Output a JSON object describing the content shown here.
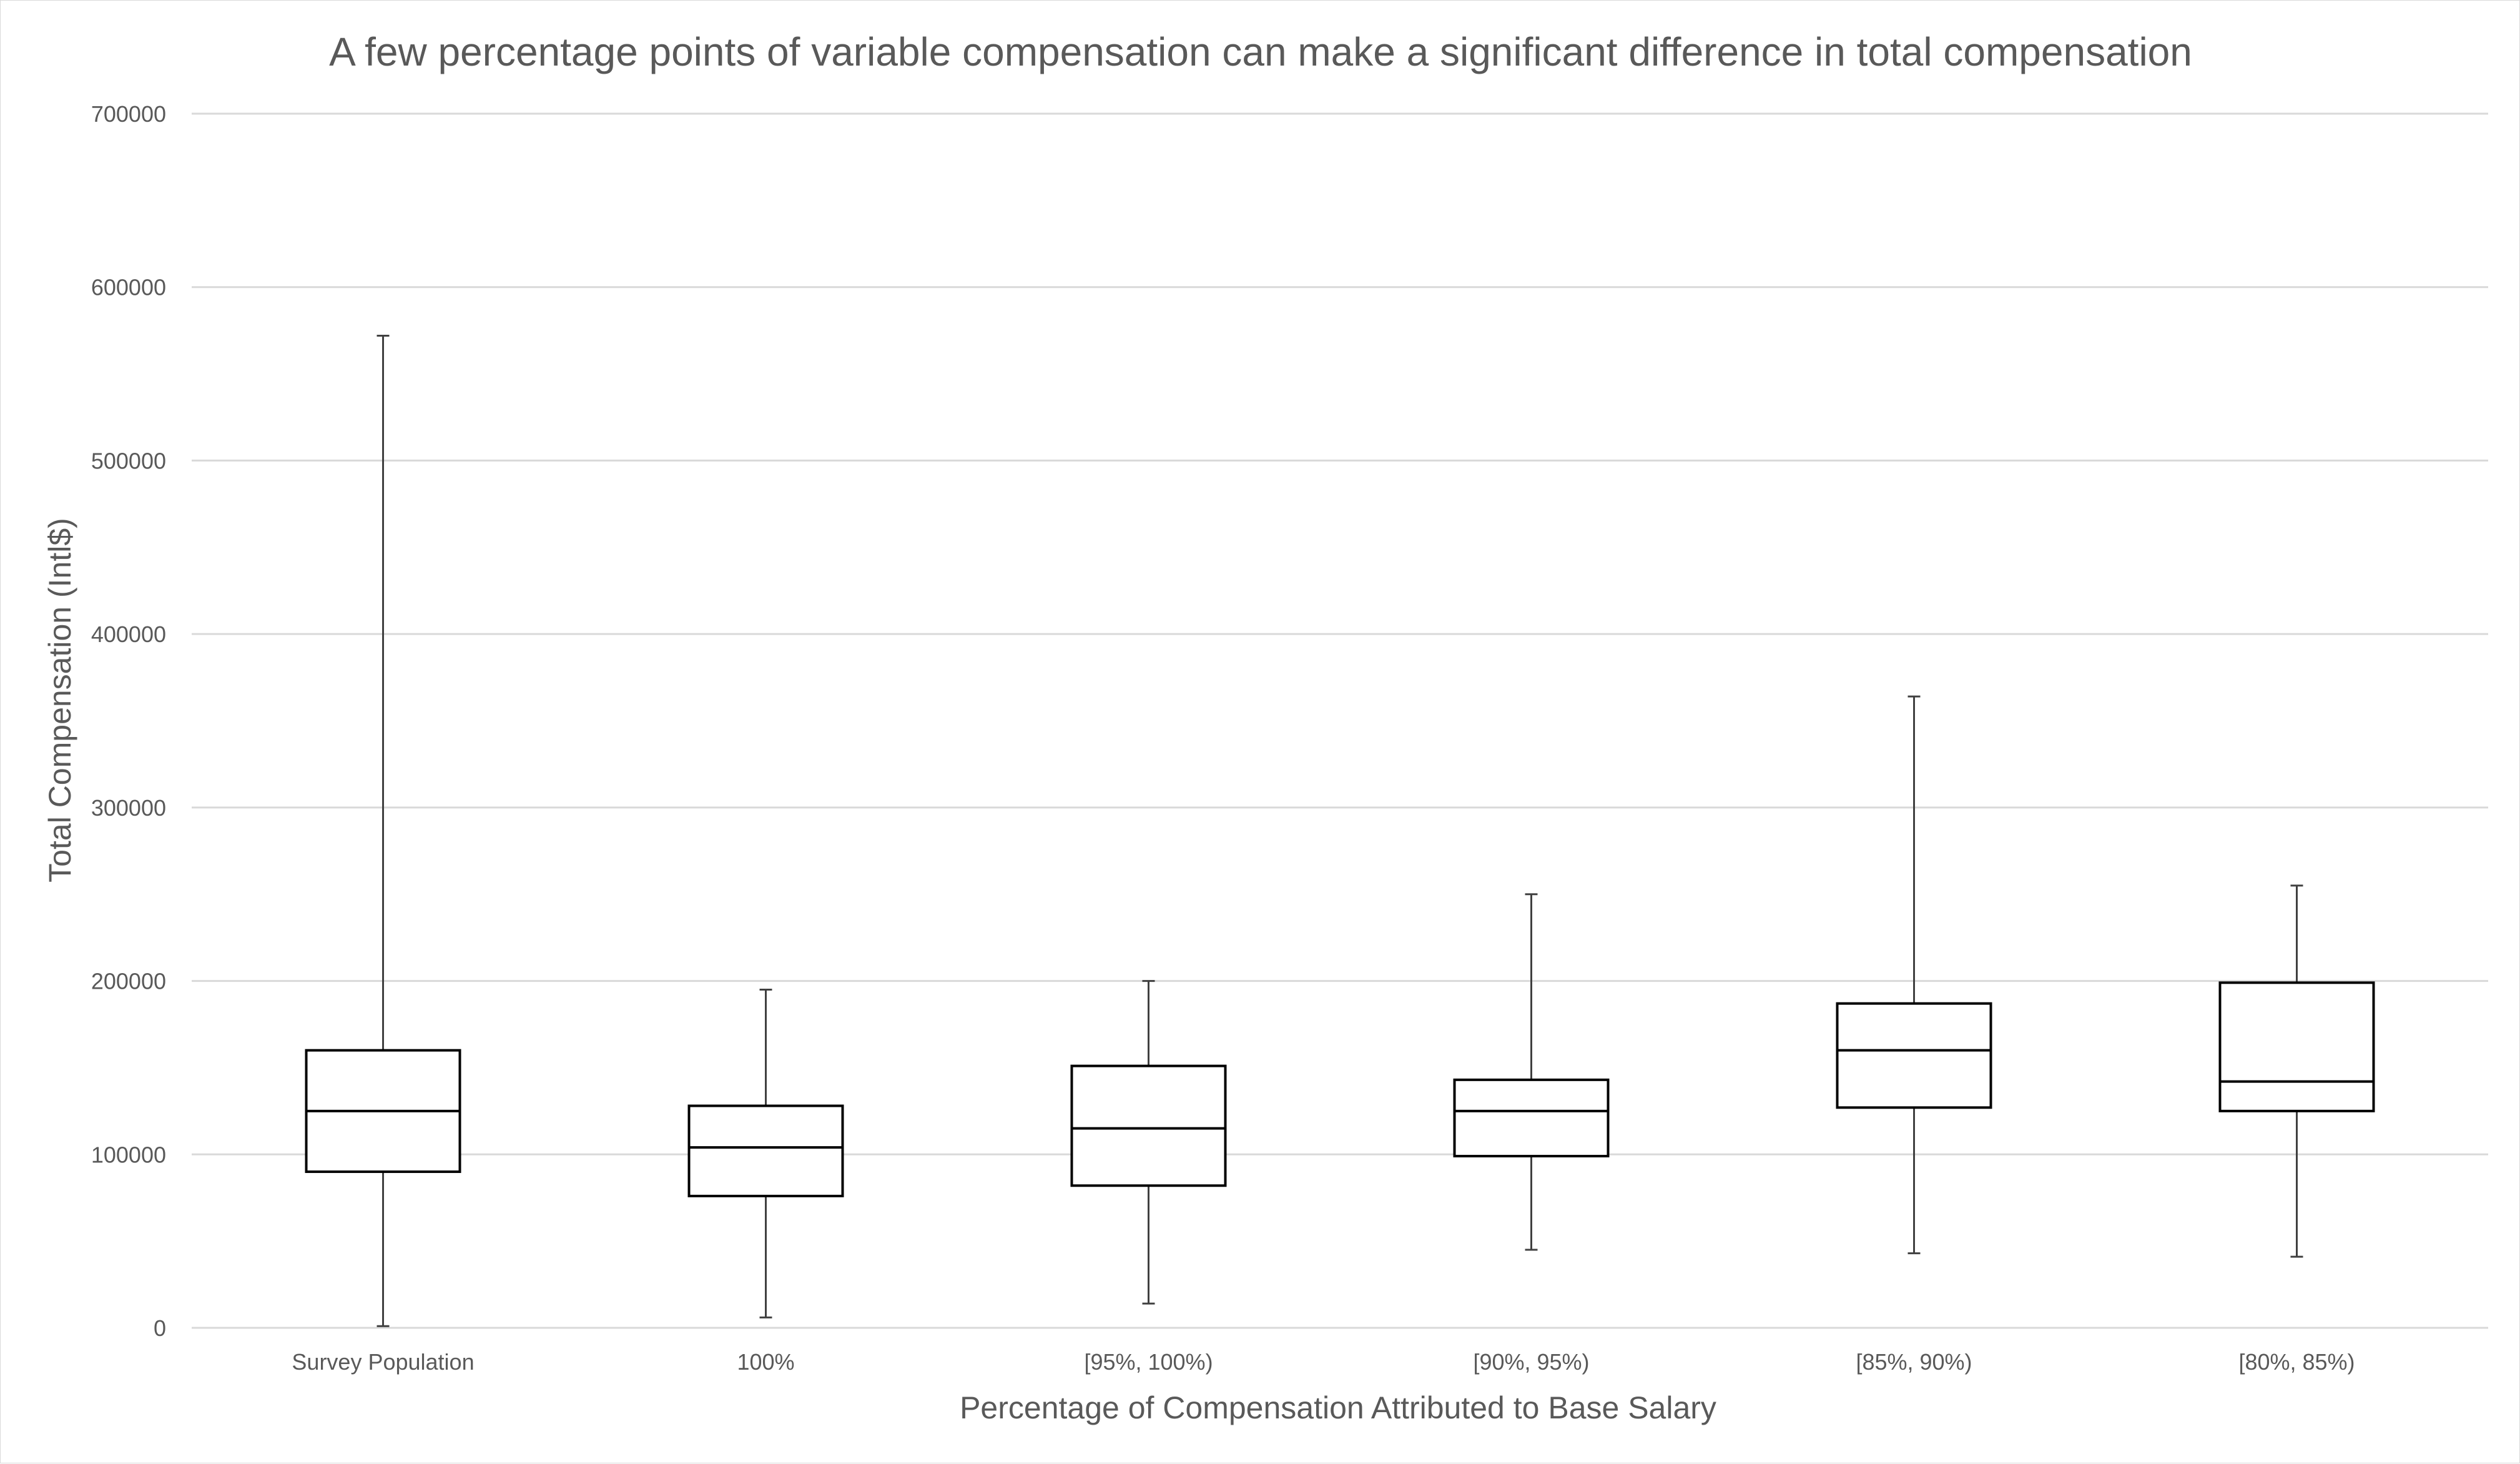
{
  "chart_data": {
    "type": "box",
    "title": "A few percentage points of variable compensation can make a significant difference in total compensation",
    "xlabel": "Percentage of Compensation Attributed to Base Salary",
    "ylabel": "Total Compensation (Intl$)",
    "ylim": [
      0,
      700000
    ],
    "yticks": [
      "0",
      "100000",
      "200000",
      "300000",
      "400000",
      "500000",
      "600000",
      "700000"
    ],
    "grid": true,
    "legend": "none",
    "categories": [
      "Survey Population",
      "100%",
      "[95%, 100%)",
      "[90%, 95%)",
      "[85%, 90%)",
      "[80%, 85%)"
    ],
    "boxes": [
      {
        "min": 1000,
        "q1": 90000,
        "median": 125000,
        "q3": 160000,
        "max": 572000
      },
      {
        "min": 6000,
        "q1": 76000,
        "median": 104000,
        "q3": 128000,
        "max": 195000
      },
      {
        "min": 14000,
        "q1": 82000,
        "median": 115000,
        "q3": 151000,
        "max": 200000
      },
      {
        "min": 45000,
        "q1": 99000,
        "median": 125000,
        "q3": 143000,
        "max": 250000
      },
      {
        "min": 43000,
        "q1": 127000,
        "median": 160000,
        "q3": 187000,
        "max": 364000
      },
      {
        "min": 41000,
        "q1": 125000,
        "median": 142000,
        "q3": 199000,
        "max": 255000
      }
    ],
    "colors": {
      "box_stroke": "#000000",
      "box_fill": "#ffffff",
      "whisker": "#404040",
      "gridline": "#d9d9d9",
      "text": "#595959"
    }
  }
}
